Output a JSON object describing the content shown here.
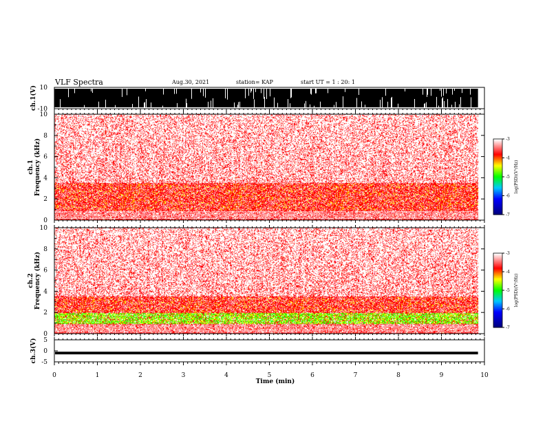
{
  "header": {
    "title": "VLF Spectra",
    "date": "Aug.30, 2021",
    "station": "station= KAP",
    "start": "start  UT  =   1 : 20: 1"
  },
  "colors": {
    "frame": "#000000",
    "waveform": "#000000",
    "spectrogram_background": "#ffffff",
    "colormap": [
      "#000080",
      "#0000ff",
      "#00ccff",
      "#00ff00",
      "#ffff00",
      "#ff0000",
      "#ffffff"
    ]
  },
  "chart_data": [
    {
      "type": "line",
      "panel": "ch1-waveform",
      "ylabel": "ch.1(V)",
      "ylim": [
        -10,
        10
      ],
      "ytick_labels": [
        "-10",
        "10"
      ],
      "xlim": [
        0,
        10
      ],
      "data_extent_min": 9.85,
      "description_values": {
        "trace_amplitude_range": [
          -10,
          10
        ]
      }
    },
    {
      "type": "heatmap",
      "panel": "ch1-spectrogram",
      "ylabel": "ch.1\nFrequency (kHz)",
      "ylim": [
        0,
        10
      ],
      "ytick_labels": [
        "0",
        "2",
        "4",
        "6",
        "8",
        "10"
      ],
      "xlim": [
        0,
        10
      ],
      "data_extent_min": 9.85,
      "colorbar": {
        "label": "log(PSD)(V²/Hz)",
        "range": [
          -7,
          -3
        ],
        "tick_labels": [
          "-3",
          "-4",
          "-5",
          "-6",
          "-7"
        ]
      },
      "bands_kHz": {
        "strong_low": [
          0.9,
          3.5
        ],
        "sparse_high": [
          3.5,
          10
        ]
      }
    },
    {
      "type": "heatmap",
      "panel": "ch2-spectrogram",
      "ylabel": "ch.2\nFrequency (kHz)",
      "ylim": [
        0,
        10
      ],
      "ytick_labels": [
        "0",
        "2",
        "4",
        "6",
        "8",
        "10"
      ],
      "xlim": [
        0,
        10
      ],
      "data_extent_min": 9.85,
      "colorbar": {
        "label": "log(PSD)(V²/Hz)",
        "range": [
          -7,
          -3
        ],
        "tick_labels": [
          "-3",
          "-4",
          "-5",
          "-6",
          "-7"
        ]
      },
      "bands_kHz": {
        "green_band": [
          0.9,
          1.9
        ],
        "strong_low": [
          1.9,
          3.6
        ],
        "sparse_high": [
          3.6,
          10
        ]
      }
    },
    {
      "type": "line",
      "panel": "ch3-waveform",
      "ylabel": "ch.3(V)",
      "ylim": [
        -5,
        5
      ],
      "ytick_labels": [
        "-5",
        "0",
        "5"
      ],
      "xlim": [
        0,
        10
      ],
      "data_extent_min": 9.85,
      "description_values": {
        "trace_level_V": -1,
        "trace_amplitude_range": [
          -1.6,
          -0.4
        ]
      }
    }
  ],
  "xaxis": {
    "label": "Time (min)",
    "tick_labels": [
      "0",
      "1",
      "2",
      "3",
      "4",
      "5",
      "6",
      "7",
      "8",
      "9",
      "10"
    ]
  }
}
